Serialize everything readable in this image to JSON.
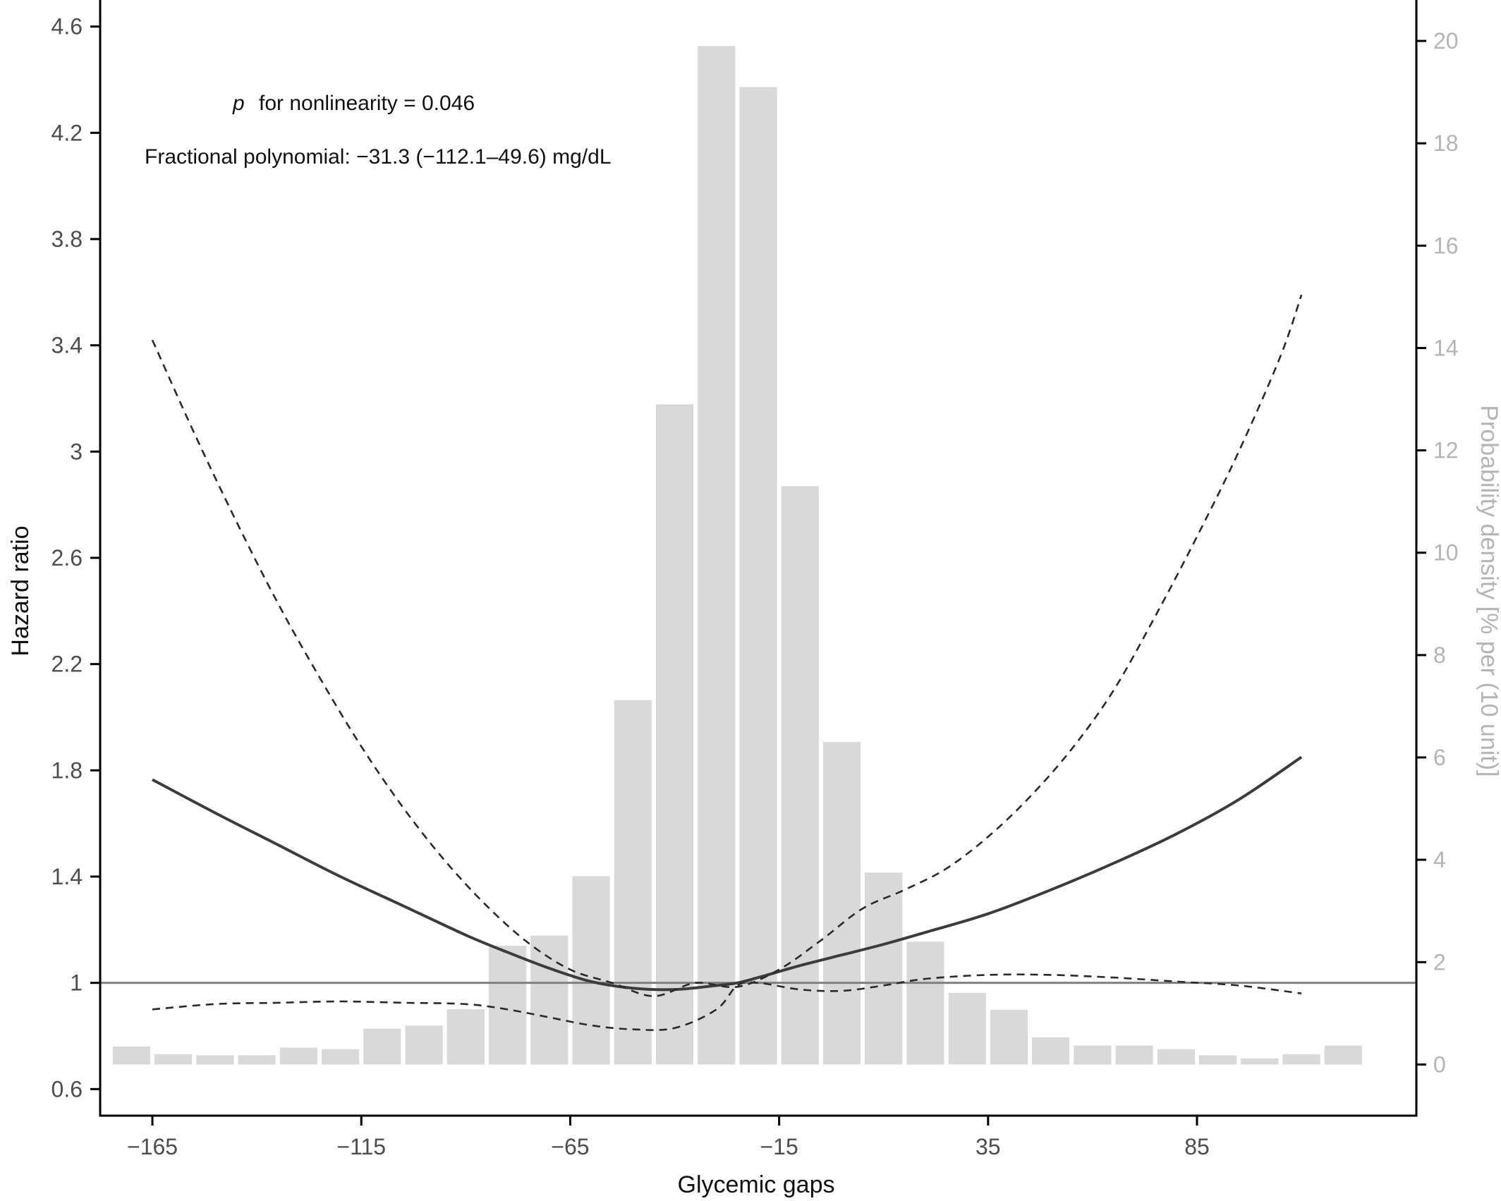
{
  "chart_data": {
    "type": "line",
    "xlabel": "Glycemic gaps",
    "ylabel_left": "Hazard ratio",
    "ylabel_right": "Probability density [% per (10 unit)]",
    "annotations": {
      "p_italic": "p",
      "p_rest": "for nonlinearity = 0.046",
      "fp": "Fractional polynomial: −31.3 (−112.1–49.6) mg/dL"
    },
    "x_ticks": [
      -165,
      -115,
      -65,
      -15,
      35,
      85
    ],
    "x_tick_labels": [
      "−165",
      "−115",
      "−65",
      "−15",
      "35",
      "85"
    ],
    "xlim": [
      -177.5,
      137.5
    ],
    "y_left_ticks": [
      0.6,
      1,
      1.4,
      1.8,
      2.2,
      2.6,
      3,
      3.4,
      3.8,
      4.2,
      4.6
    ],
    "y_left_tick_labels": [
      "0.6",
      "1",
      "1.4",
      "1.8",
      "2.2",
      "2.6",
      "3",
      "3.4",
      "3.8",
      "4.2",
      "4.6"
    ],
    "ylim_left": [
      0.5,
      4.7
    ],
    "y_right_ticks": [
      0,
      2,
      4,
      6,
      8,
      10,
      12,
      14,
      16,
      18,
      20
    ],
    "y_right_tick_labels": [
      "0",
      "2",
      "4",
      "6",
      "8",
      "10",
      "12",
      "14",
      "16",
      "18",
      "20"
    ],
    "ylim_right": [
      -1.0,
      20.8
    ],
    "reference_line_hr": 1,
    "histogram": {
      "bin_width": 10,
      "bin_centers": [
        -170,
        -160,
        -150,
        -140,
        -130,
        -120,
        -110,
        -100,
        -90,
        -80,
        -70,
        -60,
        -50,
        -40,
        -30,
        -20,
        -10,
        0,
        10,
        20,
        30,
        40,
        50,
        60,
        70,
        80,
        90,
        100,
        110,
        120
      ],
      "density": [
        0.35,
        0.2,
        0.18,
        0.18,
        0.33,
        0.3,
        0.7,
        0.76,
        1.08,
        2.32,
        2.52,
        3.68,
        7.12,
        12.9,
        19.9,
        19.1,
        11.3,
        6.3,
        3.75,
        2.4,
        1.4,
        1.07,
        0.53,
        0.37,
        0.37,
        0.3,
        0.18,
        0.12,
        0.2,
        0.37
      ]
    },
    "series": [
      {
        "style": "solid",
        "x": [
          -165,
          -150,
          -135,
          -120,
          -105,
          -90,
          -80,
          -70,
          -60,
          -50,
          -40,
          -30,
          -25,
          -20,
          -10,
          0,
          10,
          20,
          35,
          50,
          65,
          80,
          95,
          110
        ],
        "y": [
          1.765,
          1.64,
          1.52,
          1.4,
          1.29,
          1.18,
          1.115,
          1.055,
          1.005,
          0.98,
          0.975,
          0.99,
          1.0,
          1.02,
          1.065,
          1.105,
          1.145,
          1.19,
          1.26,
          1.35,
          1.45,
          1.56,
          1.69,
          1.85
        ]
      },
      {
        "style": "dashed",
        "x": [
          -165,
          -155,
          -145,
          -135,
          -125,
          -115,
          -105,
          -95,
          -85,
          -75,
          -65,
          -55,
          -45,
          -35,
          -25,
          -15,
          -5,
          5,
          15,
          25,
          35,
          45,
          55,
          65,
          75,
          85,
          95,
          105,
          110
        ],
        "y": [
          3.42,
          3.07,
          2.74,
          2.43,
          2.15,
          1.89,
          1.66,
          1.46,
          1.29,
          1.15,
          1.05,
          1.0,
          0.95,
          1.0,
          0.985,
          1.05,
          1.16,
          1.28,
          1.35,
          1.43,
          1.55,
          1.7,
          1.88,
          2.1,
          2.38,
          2.68,
          3.0,
          3.36,
          3.59
        ]
      },
      {
        "style": "dashed",
        "x": [
          -165,
          -150,
          -135,
          -120,
          -105,
          -90,
          -80,
          -70,
          -60,
          -50,
          -40,
          -30,
          -25,
          -20,
          -10,
          0,
          10,
          20,
          35,
          50,
          65,
          80,
          95,
          110
        ],
        "y": [
          0.9,
          0.92,
          0.925,
          0.93,
          0.925,
          0.92,
          0.9,
          0.87,
          0.84,
          0.825,
          0.83,
          0.9,
          0.99,
          1.0,
          0.975,
          0.97,
          0.99,
          1.015,
          1.03,
          1.03,
          1.02,
          1.005,
          0.99,
          0.96
        ]
      }
    ]
  }
}
